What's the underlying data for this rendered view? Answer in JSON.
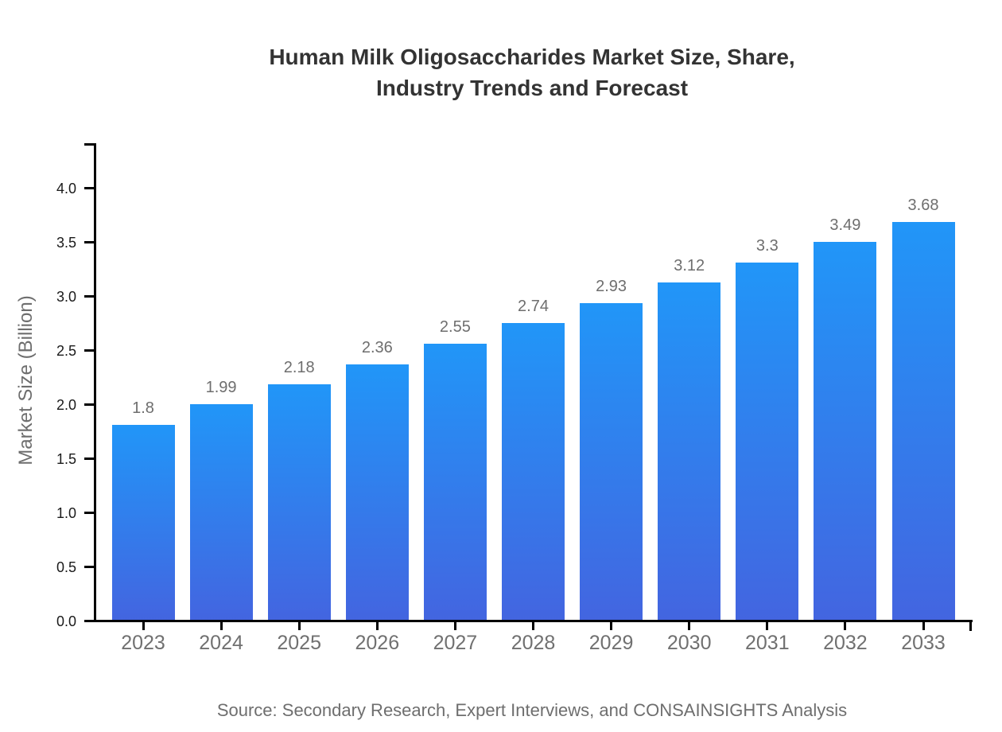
{
  "title": {
    "line1": "Human Milk Oligosaccharides Market Size, Share,",
    "line2": "Industry Trends and Forecast"
  },
  "y_axis": {
    "label": "Market Size (Billion)"
  },
  "source_note": "Source: Secondary Research, Expert Interviews, and CONSAINSIGHTS Analysis",
  "colors": {
    "bar_gradient_top": "#2196f8",
    "bar_gradient_bottom": "#4365e0",
    "axis_line": "#000000",
    "title_text": "#333333",
    "ytick_text": "#1a1a1a",
    "muted_text": "#6e6e6e"
  },
  "chart_data": {
    "type": "bar",
    "title": "Human Milk Oligosaccharides Market Size, Share, Industry Trends and Forecast",
    "categories": [
      "2023",
      "2024",
      "2025",
      "2026",
      "2027",
      "2028",
      "2029",
      "2030",
      "2031",
      "2032",
      "2033"
    ],
    "values": [
      1.8,
      1.99,
      2.18,
      2.36,
      2.55,
      2.74,
      2.93,
      3.12,
      3.3,
      3.49,
      3.68
    ],
    "value_labels": [
      "1.8",
      "1.99",
      "2.18",
      "2.36",
      "2.55",
      "2.74",
      "2.93",
      "3.12",
      "3.3",
      "3.49",
      "3.68"
    ],
    "xlabel": "",
    "ylabel": "Market Size (Billion)",
    "ylim": [
      0,
      4.42
    ],
    "yticks": [
      "0.0",
      "0.5",
      "1.0",
      "1.5",
      "2.0",
      "2.5",
      "3.0",
      "3.5",
      "4.0"
    ],
    "ytick_values": [
      0.0,
      0.5,
      1.0,
      1.5,
      2.0,
      2.5,
      3.0,
      3.5,
      4.0
    ],
    "grid": false,
    "legend": "none",
    "bar_labels_shown": true,
    "source": "Source: Secondary Research, Expert Interviews, and CONSAINSIGHTS Analysis"
  }
}
